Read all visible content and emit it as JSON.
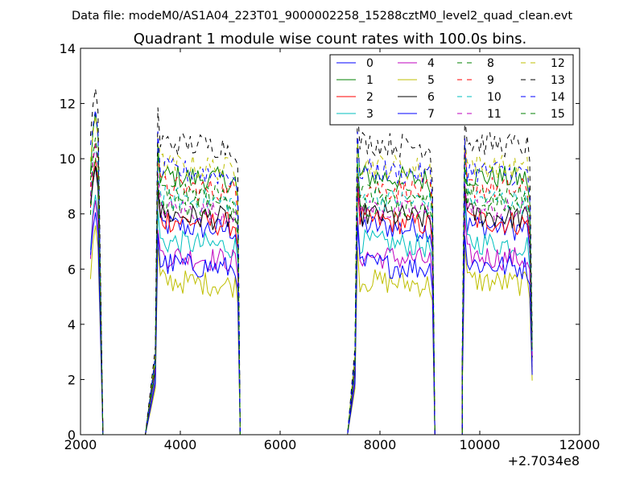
{
  "chart_data": {
    "type": "line",
    "suptitle": "Data file: modeM0/AS1A04_223T01_9000002258_15288cztM0_level2_quad_clean.evt",
    "title": "Quadrant 1 module wise count rates with 100.0s bins.",
    "xlabel": "",
    "ylabel": "",
    "x_offset_label": "+2.7034e8",
    "xlim": [
      2000,
      12000
    ],
    "ylim": [
      0,
      14
    ],
    "xticks": [
      2000,
      4000,
      6000,
      8000,
      10000,
      12000
    ],
    "yticks": [
      0,
      2,
      4,
      6,
      8,
      10,
      12,
      14
    ],
    "legend_location": "upper right",
    "legend_columns": 4,
    "segments": [
      {
        "start": 2200,
        "step": 50,
        "drop_to": 2550,
        "n": 4
      },
      {
        "start": 3300,
        "step": 50,
        "plateau_from": 3550,
        "end": 5200,
        "n": 34
      },
      {
        "start": 7350,
        "step": 50,
        "plateau_from": 7550,
        "end": 9100,
        "n": 36
      },
      {
        "start": 9650,
        "step": 50,
        "plateau_from": 9700,
        "end": 11050,
        "n": 28
      }
    ],
    "series": [
      {
        "name": "0",
        "color": "#0000ff",
        "dash": "solid",
        "level": 7.6
      },
      {
        "name": "1",
        "color": "#008000",
        "dash": "solid",
        "level": 9.4
      },
      {
        "name": "2",
        "color": "#ff0000",
        "dash": "solid",
        "level": 7.8
      },
      {
        "name": "3",
        "color": "#00bfbf",
        "dash": "solid",
        "level": 7.0
      },
      {
        "name": "4",
        "color": "#bf00bf",
        "dash": "solid",
        "level": 6.5
      },
      {
        "name": "5",
        "color": "#bfbf00",
        "dash": "solid",
        "level": 5.6
      },
      {
        "name": "6",
        "color": "#000000",
        "dash": "solid",
        "level": 8.0
      },
      {
        "name": "7",
        "color": "#0000ff",
        "dash": "solid",
        "level": 6.2
      },
      {
        "name": "8",
        "color": "#008000",
        "dash": "dashed",
        "level": 8.4
      },
      {
        "name": "9",
        "color": "#ff0000",
        "dash": "dashed",
        "level": 9.0
      },
      {
        "name": "10",
        "color": "#00bfbf",
        "dash": "dashed",
        "level": 8.6
      },
      {
        "name": "11",
        "color": "#bf00bf",
        "dash": "dashed",
        "level": 8.2
      },
      {
        "name": "12",
        "color": "#bfbf00",
        "dash": "dashed",
        "level": 9.8
      },
      {
        "name": "13",
        "color": "#000000",
        "dash": "dashed",
        "level": 10.6
      },
      {
        "name": "14",
        "color": "#0000ff",
        "dash": "dashed",
        "level": 9.6
      },
      {
        "name": "15",
        "color": "#008000",
        "dash": "dashed",
        "level": 8.8
      }
    ]
  }
}
